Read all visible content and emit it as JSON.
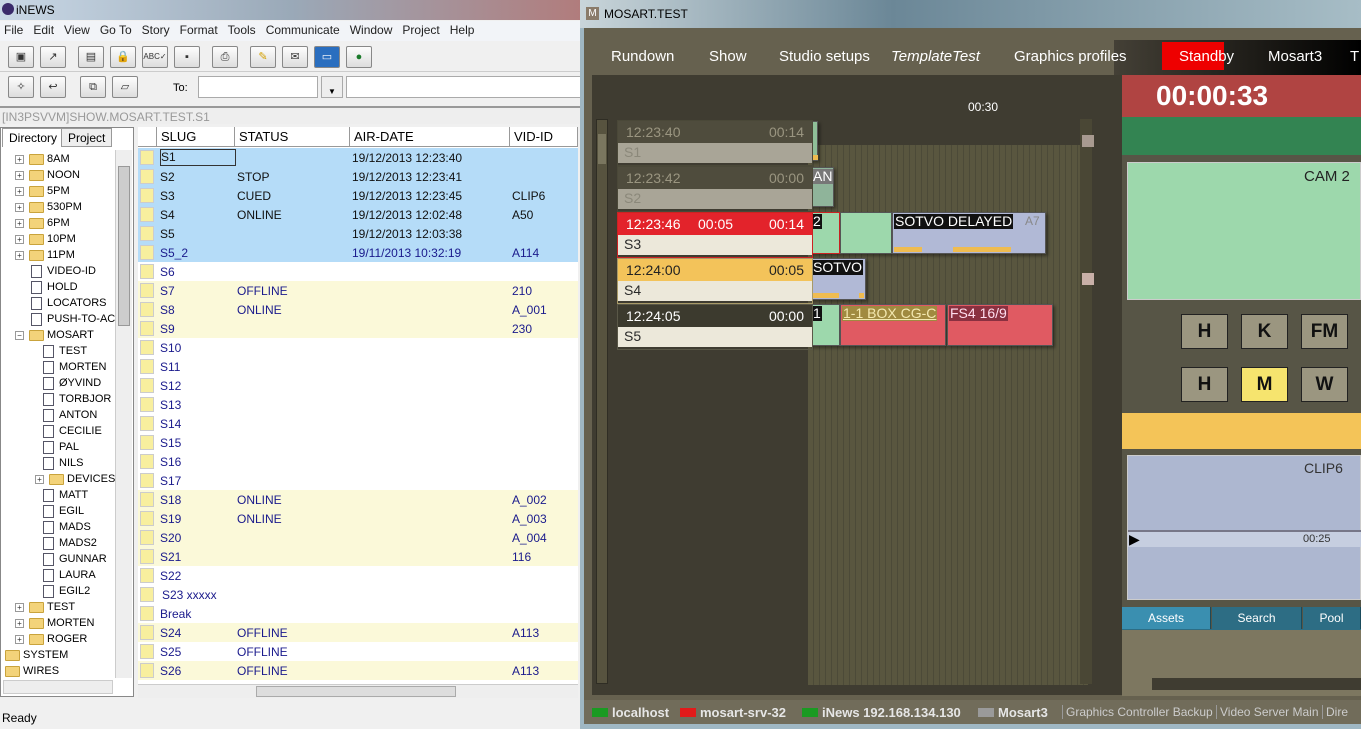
{
  "inews": {
    "title": "iNEWS",
    "menu": [
      "File",
      "Edit",
      "View",
      "Go To",
      "Story",
      "Format",
      "Tools",
      "Communicate",
      "Window",
      "Project",
      "Help"
    ],
    "to_label": "To:",
    "path": "[IN3PSVVM]SHOW.MOSART.TEST.S1",
    "tabs": [
      "Directory",
      "Project"
    ],
    "tree": [
      {
        "label": "8AM",
        "type": "folder",
        "level": 0,
        "exp": "+"
      },
      {
        "label": "NOON",
        "type": "folder",
        "level": 0,
        "exp": "+"
      },
      {
        "label": "5PM",
        "type": "folder",
        "level": 0,
        "exp": "+"
      },
      {
        "label": "530PM",
        "type": "folder",
        "level": 0,
        "exp": "+"
      },
      {
        "label": "6PM",
        "type": "folder",
        "level": 0,
        "exp": "+"
      },
      {
        "label": "10PM",
        "type": "folder",
        "level": 0,
        "exp": "+"
      },
      {
        "label": "11PM",
        "type": "folder",
        "level": 0,
        "exp": "+"
      },
      {
        "label": "VIDEO-ID",
        "type": "queue",
        "level": 0
      },
      {
        "label": "HOLD",
        "type": "queue",
        "level": 0
      },
      {
        "label": "LOCATORS",
        "type": "queue",
        "level": 0
      },
      {
        "label": "PUSH-TO-ACT",
        "type": "queue",
        "level": 0
      },
      {
        "label": "MOSART",
        "type": "folder",
        "level": 0,
        "exp": "−"
      },
      {
        "label": "TEST",
        "type": "queue",
        "level": 1
      },
      {
        "label": "MORTEN",
        "type": "queue",
        "level": 1
      },
      {
        "label": "ØYVIND",
        "type": "queue",
        "level": 1
      },
      {
        "label": "TORBJOR",
        "type": "queue",
        "level": 1
      },
      {
        "label": "ANTON",
        "type": "queue",
        "level": 1
      },
      {
        "label": "CECILIE",
        "type": "queue",
        "level": 1
      },
      {
        "label": "PAL",
        "type": "queue",
        "level": 1
      },
      {
        "label": "NILS",
        "type": "queue",
        "level": 1
      },
      {
        "label": "DEVICES",
        "type": "folder",
        "level": 1,
        "exp": "+"
      },
      {
        "label": "MATT",
        "type": "queue",
        "level": 1
      },
      {
        "label": "EGIL",
        "type": "queue",
        "level": 1
      },
      {
        "label": "MADS",
        "type": "queue",
        "level": 1
      },
      {
        "label": "MADS2",
        "type": "queue",
        "level": 1
      },
      {
        "label": "GUNNAR",
        "type": "queue",
        "level": 1
      },
      {
        "label": "LAURA",
        "type": "queue",
        "level": 1
      },
      {
        "label": "EGIL2",
        "type": "queue",
        "level": 1
      },
      {
        "label": "TEST",
        "type": "folder",
        "level": 0,
        "exp": "+"
      },
      {
        "label": "MORTEN",
        "type": "folder",
        "level": 0,
        "exp": "+"
      },
      {
        "label": "ROGER",
        "type": "folder",
        "level": 0,
        "exp": "+"
      },
      {
        "label": "SYSTEM",
        "type": "folder",
        "level": -1
      },
      {
        "label": "WIRES",
        "type": "folder",
        "level": -1
      }
    ],
    "columns": [
      "SLUG",
      "STATUS",
      "AIR-DATE",
      "VID-ID"
    ],
    "rows": [
      {
        "slug": "S1",
        "status": "",
        "air": "19/12/2013 12:23:40",
        "vid": "",
        "bg": "#b5dcf8"
      },
      {
        "slug": "S2",
        "status": "STOP",
        "air": "19/12/2013 12:23:41",
        "vid": "",
        "bg": "#b5dcf8"
      },
      {
        "slug": "S3",
        "status": "CUED",
        "air": "19/12/2013 12:23:45",
        "vid": "CLIP6",
        "bg": "#b5dcf8"
      },
      {
        "slug": "S4",
        "status": "ONLINE",
        "air": "19/12/2013 12:02:48",
        "vid": "A50",
        "bg": "#b5dcf8"
      },
      {
        "slug": "S5",
        "status": "",
        "air": "19/12/2013 12:03:38",
        "vid": "",
        "bg": "#b5dcf8"
      },
      {
        "slug": "S5_2",
        "status": "",
        "air": "19/11/2013 10:32:19",
        "vid": "A114",
        "bg": "#b5dcf8"
      },
      {
        "slug": "S6",
        "status": "",
        "air": "",
        "vid": "",
        "bg": "#ffffff"
      },
      {
        "slug": "S7",
        "status": "OFFLINE",
        "air": "",
        "vid": "210",
        "bg": "#fbf9d9"
      },
      {
        "slug": "S8",
        "status": "ONLINE",
        "air": "",
        "vid": "A_001",
        "bg": "#fbf9d9"
      },
      {
        "slug": "S9",
        "status": "",
        "air": "",
        "vid": "230",
        "bg": "#fbf9d9"
      },
      {
        "slug": "S10",
        "status": "",
        "air": "",
        "vid": "",
        "bg": "#ffffff"
      },
      {
        "slug": "S11",
        "status": "",
        "air": "",
        "vid": "",
        "bg": "#ffffff"
      },
      {
        "slug": "S12",
        "status": "",
        "air": "",
        "vid": "",
        "bg": "#ffffff"
      },
      {
        "slug": "S13",
        "status": "",
        "air": "",
        "vid": "",
        "bg": "#ffffff"
      },
      {
        "slug": "S14",
        "status": "",
        "air": "",
        "vid": "",
        "bg": "#ffffff"
      },
      {
        "slug": "S15",
        "status": "",
        "air": "",
        "vid": "",
        "bg": "#ffffff"
      },
      {
        "slug": "S16",
        "status": "",
        "air": "",
        "vid": "",
        "bg": "#ffffff"
      },
      {
        "slug": "S17",
        "status": "",
        "air": "",
        "vid": "",
        "bg": "#ffffff"
      },
      {
        "slug": "S18",
        "status": "ONLINE",
        "air": "",
        "vid": "A_002",
        "bg": "#fbf9d9"
      },
      {
        "slug": "S19",
        "status": "ONLINE",
        "air": "",
        "vid": "A_003",
        "bg": "#fbf9d9"
      },
      {
        "slug": "S20",
        "status": "",
        "air": "",
        "vid": "A_004",
        "bg": "#fbf9d9"
      },
      {
        "slug": "S21",
        "status": "",
        "air": "",
        "vid": "116",
        "bg": "#fbf9d9"
      },
      {
        "slug": "S22",
        "status": "",
        "air": "",
        "vid": "",
        "bg": "#ffffff"
      },
      {
        "slug": "S23 xxxxx",
        "status": "",
        "air": "",
        "vid": "",
        "bg": "#ffffff"
      },
      {
        "slug": "Break",
        "status": "",
        "air": "",
        "vid": "",
        "bg": "#ffffff"
      },
      {
        "slug": "S24",
        "status": "OFFLINE",
        "air": "",
        "vid": "A113",
        "bg": "#fbf9d9"
      },
      {
        "slug": "S25",
        "status": "OFFLINE",
        "air": "",
        "vid": "",
        "bg": "#ffffff"
      },
      {
        "slug": "S26",
        "status": "OFFLINE",
        "air": "",
        "vid": "A113",
        "bg": "#fbf9d9"
      }
    ],
    "status": "Ready"
  },
  "mosart": {
    "title": "MOSART.TEST",
    "menu": [
      "Rundown",
      "Show",
      "Studio setups",
      "TemplateTest",
      "Graphics profiles",
      "Standby",
      "Mosart3",
      "T"
    ],
    "timeline_tick": "00:30",
    "clock": "00:00:33",
    "stories": [
      {
        "time": "12:23:40",
        "mid": "",
        "dur": "00:14",
        "slug": "S1",
        "state": "past"
      },
      {
        "time": "12:23:42",
        "mid": "",
        "dur": "00:00",
        "slug": "S2",
        "state": "past"
      },
      {
        "time": "12:23:46",
        "mid": "00:05",
        "dur": "00:14",
        "slug": "S3",
        "state": "onair"
      },
      {
        "time": "12:24:00",
        "mid": "",
        "dur": "00:05",
        "slug": "S4",
        "state": "next"
      },
      {
        "time": "12:24:05",
        "mid": "",
        "dur": "00:00",
        "slug": "S5",
        "state": "future"
      }
    ],
    "items": {
      "s2_label": "AN",
      "s3_cam": "2",
      "s3_clip": "SOTVO DELAYED",
      "s3_clip_id": "A7",
      "s4_clip": "SOTVO",
      "s5_cam": "1",
      "s5_cg": "1-1 BOX CG-C",
      "s5_fs": "FS4 16/9"
    },
    "right": {
      "cam": "CAM 2",
      "buttons_row1": [
        "H",
        "K",
        "FM"
      ],
      "buttons_row2": [
        "H",
        "M",
        "W"
      ],
      "clip": "CLIP6",
      "clip_time": "00:25",
      "tabs": [
        "Assets",
        "Search",
        "Pool"
      ]
    },
    "status": [
      {
        "label": "localhost",
        "color": "#1a9a22"
      },
      {
        "label": "mosart-srv-32",
        "color": "#e21a1a"
      },
      {
        "label": "iNews 192.168.134.130",
        "color": "#1a9a22"
      },
      {
        "label": "Mosart3",
        "color": "#9a9a9a"
      }
    ],
    "status_right": [
      "Graphics Controller Backup",
      "Video Server Main",
      "Dire"
    ]
  }
}
